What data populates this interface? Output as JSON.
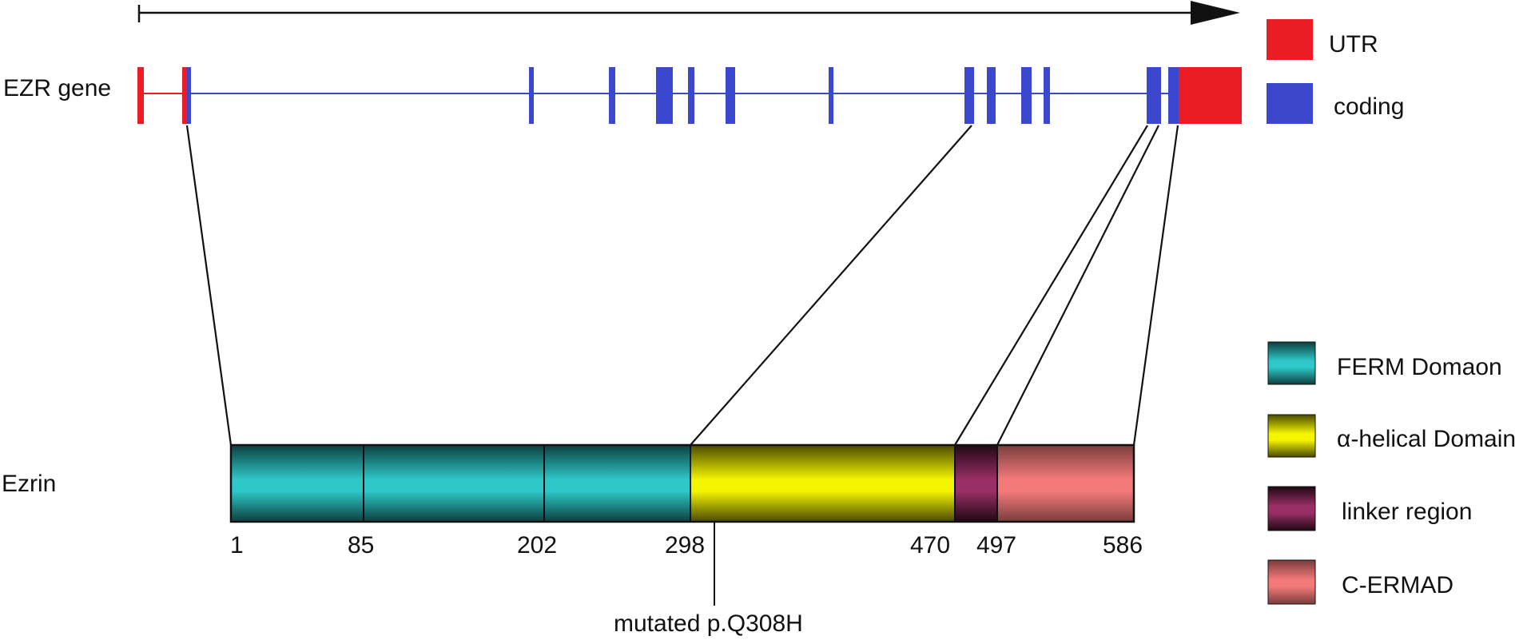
{
  "gene": {
    "label": "EZR gene"
  },
  "protein": {
    "label": "Ezrin",
    "positions": [
      "1",
      "85",
      "202",
      "298",
      "470",
      "497",
      "586"
    ],
    "mutation": {
      "prefix": "mutated p.",
      "name": "Q308H"
    }
  },
  "legend": {
    "utr": {
      "label": "UTR",
      "color": "#ec1c24"
    },
    "coding": {
      "label": "coding",
      "color": "#3b47cc"
    },
    "ferm": {
      "label": "FERM Domaon",
      "color": "#2ec8c8"
    },
    "helical": {
      "label": "α-helical Domain",
      "color": "#f5f500"
    },
    "linker": {
      "label": "linker region",
      "color": "#9a2f66"
    },
    "cermad": {
      "label": "C-ERMAD",
      "color": "#f47a7a"
    }
  }
}
